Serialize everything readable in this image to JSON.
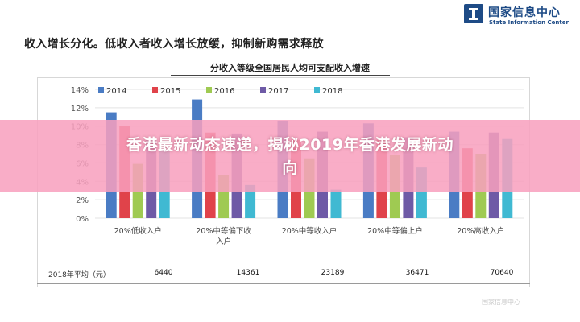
{
  "logo": {
    "name_cn": "国家信息中心",
    "name_en": "State Information Center"
  },
  "headline": "收入增长分化。低收入者收入增长放缓，抑制新购需求释放",
  "banner": {
    "line1": "香港最新动态速递，揭秘2019年香港发展新动",
    "line2": "向"
  },
  "watermark": "国家信息中心",
  "colors": {
    "s2014": "#4a7cc4",
    "s2015": "#e0434a",
    "s2016": "#9fca52",
    "s2017": "#6e5aa6",
    "s2018": "#40b9d2",
    "banner": "#f8a0be",
    "logo": "#1e4b86"
  },
  "chart_data": {
    "type": "bar",
    "title": "分收入等级全国居民人均可支配收入增速",
    "categories": [
      "20%低收入户",
      "20%中等偏下收入户",
      "20%中等收入户",
      "20%中等偏上户",
      "20%高收入户"
    ],
    "series": [
      {
        "name": "2014",
        "values": [
          11.5,
          12.9,
          10.6,
          10.3,
          9.4
        ]
      },
      {
        "name": "2015",
        "values": [
          10.0,
          9.3,
          8.5,
          8.5,
          7.6
        ]
      },
      {
        "name": "2016",
        "values": [
          5.9,
          4.7,
          6.5,
          6.9,
          7.0
        ]
      },
      {
        "name": "2017",
        "values": [
          8.5,
          9.2,
          9.4,
          8.8,
          9.3
        ]
      },
      {
        "name": "2018",
        "values": [
          7.5,
          3.6,
          3.1,
          5.5,
          8.6
        ]
      }
    ],
    "yticks": [
      "0%",
      "2%",
      "4%",
      "6%",
      "8%",
      "10%",
      "12%",
      "14%"
    ],
    "ylim": [
      0,
      14
    ],
    "legend_position": "top",
    "grid": true,
    "table": {
      "row_label": "2018年平均（元）",
      "values": [
        "6440",
        "14361",
        "23189",
        "36471",
        "70640"
      ]
    }
  }
}
